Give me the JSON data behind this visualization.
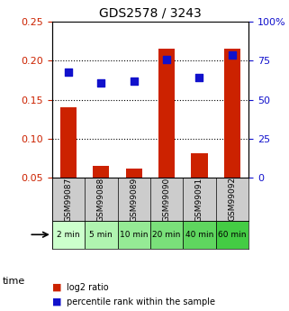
{
  "title": "GDS2578 / 3243",
  "samples": [
    "GSM99087",
    "GSM99088",
    "GSM99089",
    "GSM99090",
    "GSM99091",
    "GSM99092"
  ],
  "time_labels": [
    "2 min",
    "5 min",
    "10 min",
    "20 min",
    "40 min",
    "60 min"
  ],
  "log2_ratio": [
    0.14,
    0.065,
    0.062,
    0.215,
    0.082,
    0.215
  ],
  "percentile_rank": [
    0.185,
    0.172,
    0.174,
    0.202,
    0.178,
    0.207
  ],
  "left_ylim": [
    0.05,
    0.25
  ],
  "right_ylim": [
    0,
    100
  ],
  "left_yticks": [
    0.05,
    0.1,
    0.15,
    0.2,
    0.25
  ],
  "right_yticks": [
    0,
    25,
    50,
    75,
    100
  ],
  "left_yticklabels": [
    "0.05",
    "0.10",
    "0.15",
    "0.20",
    "0.25"
  ],
  "right_yticklabels": [
    "0",
    "25",
    "50",
    "75",
    "100%"
  ],
  "bar_color": "#cc2200",
  "dot_color": "#1111cc",
  "grid_color": "#000000",
  "bg_color_gsm": "#cccccc",
  "bg_color_time_light": "#ccffcc",
  "bg_color_time_dark": "#44cc44",
  "time_green_threshold": 3,
  "legend_bar_label": "log2 ratio",
  "legend_dot_label": "percentile rank within the sample",
  "time_label_prefix": "time"
}
